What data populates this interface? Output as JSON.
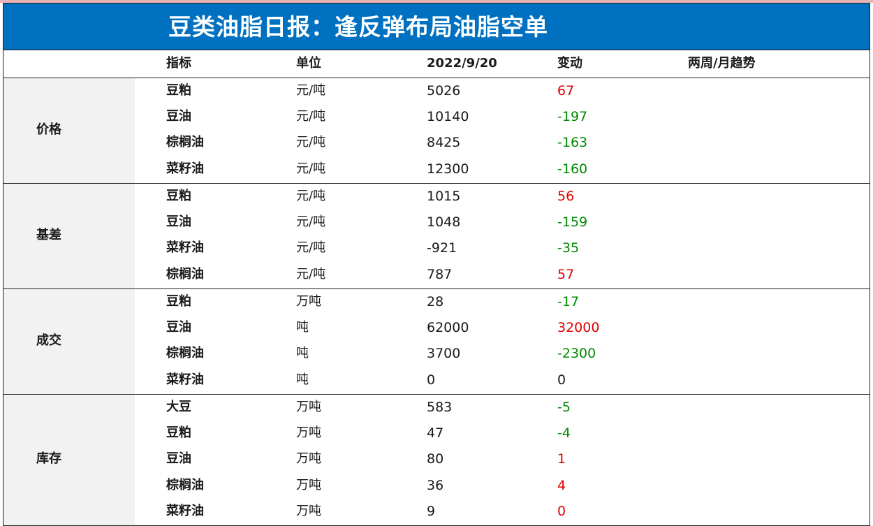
{
  "title": "豆类油脂日报：逢反弹布局油脂空单",
  "headers": {
    "indicator": "指标",
    "unit": "单位",
    "date": "2022/9/20",
    "change": "变动",
    "trend": "两周/月趋势"
  },
  "colors": {
    "title_bg": "#0070c0",
    "up": "#e00000",
    "down": "#008a00",
    "category_bg": "#f2f2f2"
  },
  "sections": [
    {
      "category": "价格",
      "rows": [
        {
          "name": "豆粕",
          "unit": "元/吨",
          "value": "5026",
          "change": "67",
          "direction": "up"
        },
        {
          "name": "豆油",
          "unit": "元/吨",
          "value": "10140",
          "change": "-197",
          "direction": "down"
        },
        {
          "name": "棕榈油",
          "unit": "元/吨",
          "value": "8425",
          "change": "-163",
          "direction": "down"
        },
        {
          "name": "菜籽油",
          "unit": "元/吨",
          "value": "12300",
          "change": "-160",
          "direction": "down"
        }
      ]
    },
    {
      "category": "基差",
      "rows": [
        {
          "name": "豆粕",
          "unit": "元/吨",
          "value": "1015",
          "change": "56",
          "direction": "up"
        },
        {
          "name": "豆油",
          "unit": "元/吨",
          "value": "1048",
          "change": "-159",
          "direction": "down"
        },
        {
          "name": "菜籽油",
          "unit": "元/吨",
          "value": "-921",
          "change": "-35",
          "direction": "down"
        },
        {
          "name": "棕榈油",
          "unit": "元/吨",
          "value": "787",
          "change": "57",
          "direction": "up"
        }
      ]
    },
    {
      "category": "成交",
      "rows": [
        {
          "name": "豆粕",
          "unit": "万吨",
          "value": "28",
          "change": "-17",
          "direction": "down"
        },
        {
          "name": "豆油",
          "unit": "吨",
          "value": "62000",
          "change": "32000",
          "direction": "up"
        },
        {
          "name": "棕榈油",
          "unit": "吨",
          "value": "3700",
          "change": "-2300",
          "direction": "down"
        },
        {
          "name": "菜籽油",
          "unit": "吨",
          "value": "0",
          "change": "0",
          "direction": "flat"
        }
      ]
    },
    {
      "category": "库存",
      "rows": [
        {
          "name": "大豆",
          "unit": "万吨",
          "value": "583",
          "change": "-5",
          "direction": "down"
        },
        {
          "name": "豆粕",
          "unit": "万吨",
          "value": "47",
          "change": "-4",
          "direction": "down"
        },
        {
          "name": "豆油",
          "unit": "万吨",
          "value": "80",
          "change": "1",
          "direction": "up"
        },
        {
          "name": "棕榈油",
          "unit": "万吨",
          "value": "36",
          "change": "4",
          "direction": "up"
        },
        {
          "name": "菜籽油",
          "unit": "万吨",
          "value": "9",
          "change": "0",
          "direction": "up"
        }
      ]
    }
  ]
}
